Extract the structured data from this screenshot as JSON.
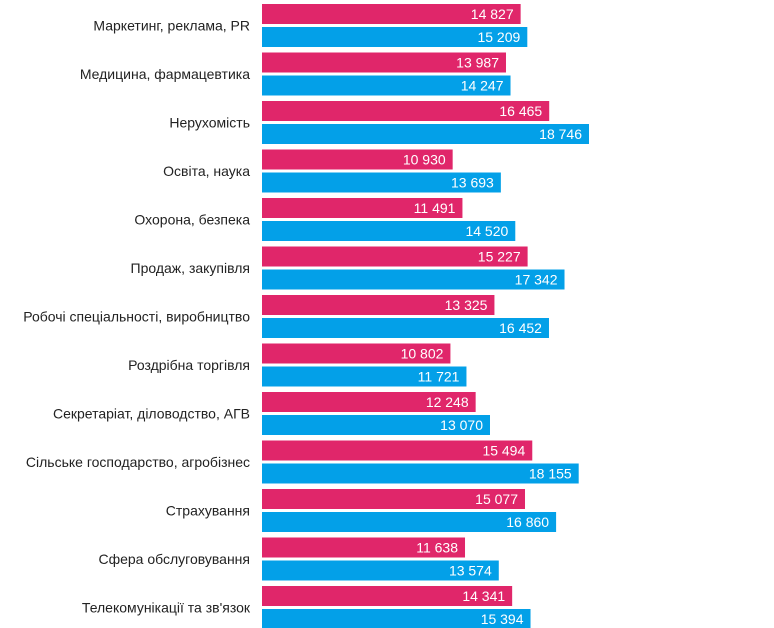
{
  "chart_data": {
    "type": "bar",
    "orientation": "horizontal",
    "categories": [
      "Маркетинг, реклама, PR",
      "Медицина, фармацевтика",
      "Нерухомість",
      "Освіта, наука",
      "Охорона, безпека",
      "Продаж, закупівля",
      "Робочі спеціальності, виробництво",
      "Роздрібна торгівля",
      "Секретаріат, діловодство, АГВ",
      "Сільське господарство, агробізнес",
      "Страхування",
      "Сфера обслуговування",
      "Телекомунікації та зв'язок"
    ],
    "series": [
      {
        "color": "#E0266A",
        "values": [
          14827,
          13987,
          16465,
          10930,
          11491,
          15227,
          13325,
          10802,
          12248,
          15494,
          15077,
          11638,
          14341
        ],
        "labels": [
          "14 827",
          "13 987",
          "16 465",
          "10 930",
          "11 491",
          "15 227",
          "13 325",
          "10 802",
          "12 248",
          "15 494",
          "15 077",
          "11 638",
          "14 341"
        ]
      },
      {
        "color": "#03A0E8",
        "values": [
          15209,
          14247,
          18746,
          13693,
          14520,
          17342,
          16452,
          11721,
          13070,
          18155,
          16860,
          13574,
          15394
        ],
        "labels": [
          "15 209",
          "14 247",
          "18 746",
          "13 693",
          "14 520",
          "17 342",
          "16 452",
          "11 721",
          "13 070",
          "18 155",
          "16 860",
          "13 574",
          "15 394"
        ]
      }
    ],
    "xlim": [
      0,
      18746
    ],
    "grid": false,
    "legend": "none"
  }
}
